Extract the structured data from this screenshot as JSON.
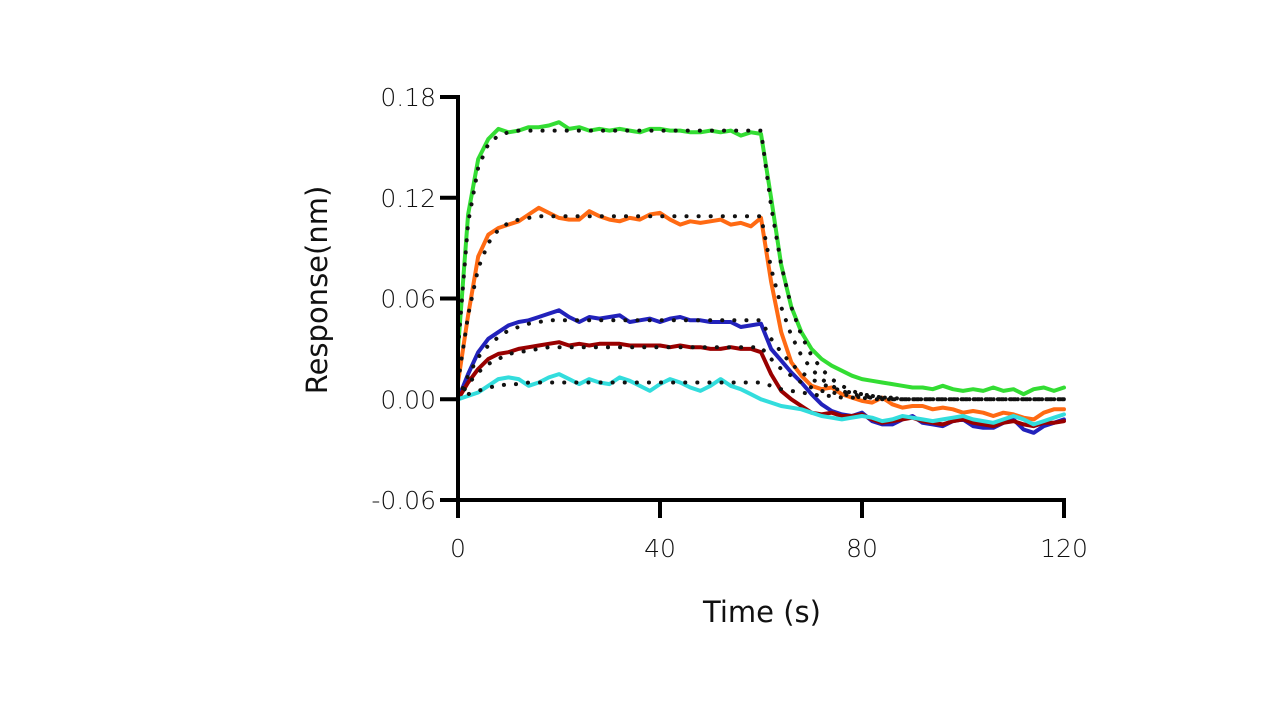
{
  "chart_data": {
    "type": "line",
    "title": "",
    "xlabel": "Time (s)",
    "ylabel": "Response(nm)",
    "xlim": [
      0,
      120
    ],
    "ylim": [
      -0.06,
      0.18
    ],
    "x_ticks": [
      0,
      40,
      80,
      120
    ],
    "x_tick_labels": [
      "0",
      "40",
      "80",
      "120"
    ],
    "y_ticks": [
      -0.06,
      0.0,
      0.06,
      0.12,
      0.18
    ],
    "y_tick_labels": [
      "-0.06",
      "0.00",
      "0.06",
      "0.12",
      "0.18"
    ],
    "grid": false,
    "legend": "none",
    "x": [
      0,
      2,
      4,
      6,
      8,
      10,
      12,
      14,
      16,
      18,
      20,
      22,
      24,
      26,
      28,
      30,
      32,
      34,
      36,
      38,
      40,
      42,
      44,
      46,
      48,
      50,
      52,
      54,
      56,
      58,
      60,
      62,
      64,
      66,
      68,
      70,
      72,
      74,
      76,
      78,
      80,
      82,
      84,
      86,
      88,
      90,
      92,
      94,
      96,
      98,
      100,
      102,
      104,
      106,
      108,
      110,
      112,
      114,
      116,
      118,
      120
    ],
    "series": [
      {
        "name": "green",
        "color": "#33dd33",
        "style": "solid",
        "values": [
          0.03,
          0.11,
          0.143,
          0.155,
          0.161,
          0.159,
          0.16,
          0.162,
          0.162,
          0.163,
          0.165,
          0.161,
          0.162,
          0.16,
          0.161,
          0.16,
          0.161,
          0.16,
          0.159,
          0.161,
          0.161,
          0.16,
          0.16,
          0.159,
          0.159,
          0.16,
          0.159,
          0.16,
          0.157,
          0.159,
          0.158,
          0.12,
          0.08,
          0.055,
          0.04,
          0.03,
          0.024,
          0.02,
          0.017,
          0.014,
          0.012,
          0.011,
          0.01,
          0.009,
          0.008,
          0.007,
          0.007,
          0.006,
          0.008,
          0.006,
          0.005,
          0.006,
          0.005,
          0.007,
          0.005,
          0.006,
          0.003,
          0.006,
          0.007,
          0.005,
          0.007
        ]
      },
      {
        "name": "orange",
        "color": "#ff6a13",
        "style": "solid",
        "values": [
          0.01,
          0.05,
          0.085,
          0.098,
          0.102,
          0.104,
          0.106,
          0.11,
          0.114,
          0.111,
          0.108,
          0.107,
          0.107,
          0.112,
          0.109,
          0.107,
          0.106,
          0.108,
          0.107,
          0.11,
          0.111,
          0.107,
          0.104,
          0.106,
          0.105,
          0.106,
          0.107,
          0.104,
          0.105,
          0.103,
          0.108,
          0.07,
          0.04,
          0.022,
          0.014,
          0.008,
          0.006,
          0.007,
          0.003,
          0.001,
          -0.001,
          -0.002,
          0.001,
          -0.003,
          -0.005,
          -0.004,
          -0.004,
          -0.006,
          -0.005,
          -0.006,
          -0.008,
          -0.007,
          -0.008,
          -0.01,
          -0.008,
          -0.009,
          -0.011,
          -0.012,
          -0.008,
          -0.006,
          -0.006
        ]
      },
      {
        "name": "blue",
        "color": "#2222bb",
        "style": "solid",
        "values": [
          0.0,
          0.015,
          0.028,
          0.036,
          0.04,
          0.044,
          0.046,
          0.047,
          0.049,
          0.051,
          0.053,
          0.049,
          0.046,
          0.049,
          0.048,
          0.049,
          0.05,
          0.046,
          0.047,
          0.048,
          0.046,
          0.048,
          0.049,
          0.047,
          0.047,
          0.046,
          0.046,
          0.046,
          0.043,
          0.044,
          0.045,
          0.03,
          0.023,
          0.016,
          0.01,
          0.003,
          -0.003,
          -0.007,
          -0.009,
          -0.01,
          -0.008,
          -0.013,
          -0.015,
          -0.015,
          -0.012,
          -0.01,
          -0.014,
          -0.015,
          -0.016,
          -0.013,
          -0.012,
          -0.016,
          -0.017,
          -0.017,
          -0.014,
          -0.012,
          -0.018,
          -0.02,
          -0.016,
          -0.014,
          -0.012
        ]
      },
      {
        "name": "dark-red",
        "color": "#990000",
        "style": "solid",
        "values": [
          0.0,
          0.01,
          0.018,
          0.024,
          0.027,
          0.028,
          0.03,
          0.031,
          0.032,
          0.033,
          0.034,
          0.032,
          0.033,
          0.032,
          0.033,
          0.033,
          0.033,
          0.032,
          0.032,
          0.032,
          0.032,
          0.031,
          0.032,
          0.031,
          0.031,
          0.03,
          0.03,
          0.031,
          0.03,
          0.03,
          0.028,
          0.015,
          0.005,
          0.0,
          -0.004,
          -0.008,
          -0.009,
          -0.008,
          -0.01,
          -0.01,
          -0.009,
          -0.012,
          -0.014,
          -0.013,
          -0.012,
          -0.011,
          -0.013,
          -0.014,
          -0.015,
          -0.013,
          -0.012,
          -0.014,
          -0.015,
          -0.016,
          -0.014,
          -0.013,
          -0.015,
          -0.016,
          -0.014,
          -0.014,
          -0.013
        ]
      },
      {
        "name": "cyan",
        "color": "#33dddd",
        "style": "solid",
        "values": [
          0.0,
          0.002,
          0.004,
          0.008,
          0.012,
          0.013,
          0.012,
          0.008,
          0.01,
          0.013,
          0.015,
          0.012,
          0.009,
          0.012,
          0.01,
          0.009,
          0.013,
          0.011,
          0.008,
          0.005,
          0.009,
          0.012,
          0.01,
          0.007,
          0.005,
          0.008,
          0.012,
          0.008,
          0.006,
          0.003,
          0.0,
          -0.002,
          -0.004,
          -0.005,
          -0.006,
          -0.008,
          -0.01,
          -0.011,
          -0.012,
          -0.011,
          -0.01,
          -0.011,
          -0.013,
          -0.012,
          -0.01,
          -0.011,
          -0.012,
          -0.013,
          -0.012,
          -0.011,
          -0.01,
          -0.012,
          -0.013,
          -0.014,
          -0.012,
          -0.01,
          -0.012,
          -0.015,
          -0.013,
          -0.011,
          -0.009
        ]
      },
      {
        "name": "fit-green",
        "color": "#111111",
        "style": "dotted",
        "values": [
          0.03,
          0.105,
          0.138,
          0.152,
          0.157,
          0.159,
          0.16,
          0.16,
          0.16,
          0.16,
          0.16,
          0.16,
          0.16,
          0.16,
          0.16,
          0.16,
          0.16,
          0.16,
          0.16,
          0.16,
          0.16,
          0.16,
          0.16,
          0.16,
          0.16,
          0.16,
          0.16,
          0.16,
          0.16,
          0.16,
          0.16,
          0.115,
          0.08,
          0.055,
          0.038,
          0.026,
          0.018,
          0.012,
          0.008,
          0.005,
          0.003,
          0.002,
          0.001,
          0.001,
          0.0,
          0.0,
          0.0,
          0.0,
          0.0,
          0.0,
          0.0,
          0.0,
          0.0,
          0.0,
          0.0,
          0.0,
          0.0,
          0.0,
          0.0,
          0.0,
          0.0
        ]
      },
      {
        "name": "fit-orange",
        "color": "#111111",
        "style": "dotted",
        "values": [
          0.01,
          0.05,
          0.078,
          0.093,
          0.101,
          0.105,
          0.107,
          0.108,
          0.109,
          0.109,
          0.109,
          0.109,
          0.109,
          0.109,
          0.109,
          0.109,
          0.109,
          0.109,
          0.109,
          0.109,
          0.109,
          0.109,
          0.109,
          0.109,
          0.109,
          0.109,
          0.109,
          0.109,
          0.109,
          0.109,
          0.109,
          0.078,
          0.055,
          0.038,
          0.026,
          0.018,
          0.012,
          0.008,
          0.005,
          0.003,
          0.002,
          0.001,
          0.001,
          0.0,
          0.0,
          0.0,
          0.0,
          0.0,
          0.0,
          0.0,
          0.0,
          0.0,
          0.0,
          0.0,
          0.0,
          0.0,
          0.0,
          0.0,
          0.0,
          0.0,
          0.0
        ]
      },
      {
        "name": "fit-blue",
        "color": "#111111",
        "style": "dotted",
        "values": [
          0.0,
          0.014,
          0.025,
          0.032,
          0.037,
          0.041,
          0.043,
          0.045,
          0.046,
          0.047,
          0.047,
          0.047,
          0.047,
          0.047,
          0.047,
          0.047,
          0.047,
          0.047,
          0.047,
          0.047,
          0.047,
          0.047,
          0.047,
          0.047,
          0.047,
          0.047,
          0.047,
          0.047,
          0.047,
          0.047,
          0.047,
          0.036,
          0.028,
          0.021,
          0.016,
          0.012,
          0.009,
          0.007,
          0.005,
          0.004,
          0.003,
          0.002,
          0.001,
          0.001,
          0.0,
          0.0,
          0.0,
          0.0,
          0.0,
          0.0,
          0.0,
          0.0,
          0.0,
          0.0,
          0.0,
          0.0,
          0.0,
          0.0,
          0.0,
          0.0,
          0.0
        ]
      },
      {
        "name": "fit-dark-red",
        "color": "#111111",
        "style": "dotted",
        "values": [
          0.0,
          0.009,
          0.016,
          0.021,
          0.024,
          0.027,
          0.028,
          0.029,
          0.03,
          0.031,
          0.031,
          0.031,
          0.031,
          0.031,
          0.031,
          0.031,
          0.031,
          0.031,
          0.031,
          0.031,
          0.031,
          0.031,
          0.031,
          0.031,
          0.031,
          0.031,
          0.031,
          0.031,
          0.031,
          0.031,
          0.031,
          0.024,
          0.018,
          0.014,
          0.01,
          0.007,
          0.005,
          0.004,
          0.003,
          0.002,
          0.001,
          0.001,
          0.0,
          0.0,
          0.0,
          0.0,
          0.0,
          0.0,
          0.0,
          0.0,
          0.0,
          0.0,
          0.0,
          0.0,
          0.0,
          0.0,
          0.0,
          0.0,
          0.0,
          0.0,
          0.0
        ]
      },
      {
        "name": "fit-cyan",
        "color": "#111111",
        "style": "dotted",
        "values": [
          0.0,
          0.003,
          0.005,
          0.007,
          0.008,
          0.009,
          0.009,
          0.01,
          0.01,
          0.01,
          0.01,
          0.01,
          0.01,
          0.01,
          0.01,
          0.01,
          0.01,
          0.01,
          0.01,
          0.01,
          0.01,
          0.01,
          0.01,
          0.01,
          0.01,
          0.01,
          0.01,
          0.01,
          0.01,
          0.01,
          0.01,
          0.008,
          0.006,
          0.005,
          0.004,
          0.003,
          0.002,
          0.002,
          0.001,
          0.001,
          0.001,
          0.0,
          0.0,
          0.0,
          0.0,
          0.0,
          0.0,
          0.0,
          0.0,
          0.0,
          0.0,
          0.0,
          0.0,
          0.0,
          0.0,
          0.0,
          0.0,
          0.0,
          0.0,
          0.0,
          0.0
        ]
      }
    ]
  }
}
